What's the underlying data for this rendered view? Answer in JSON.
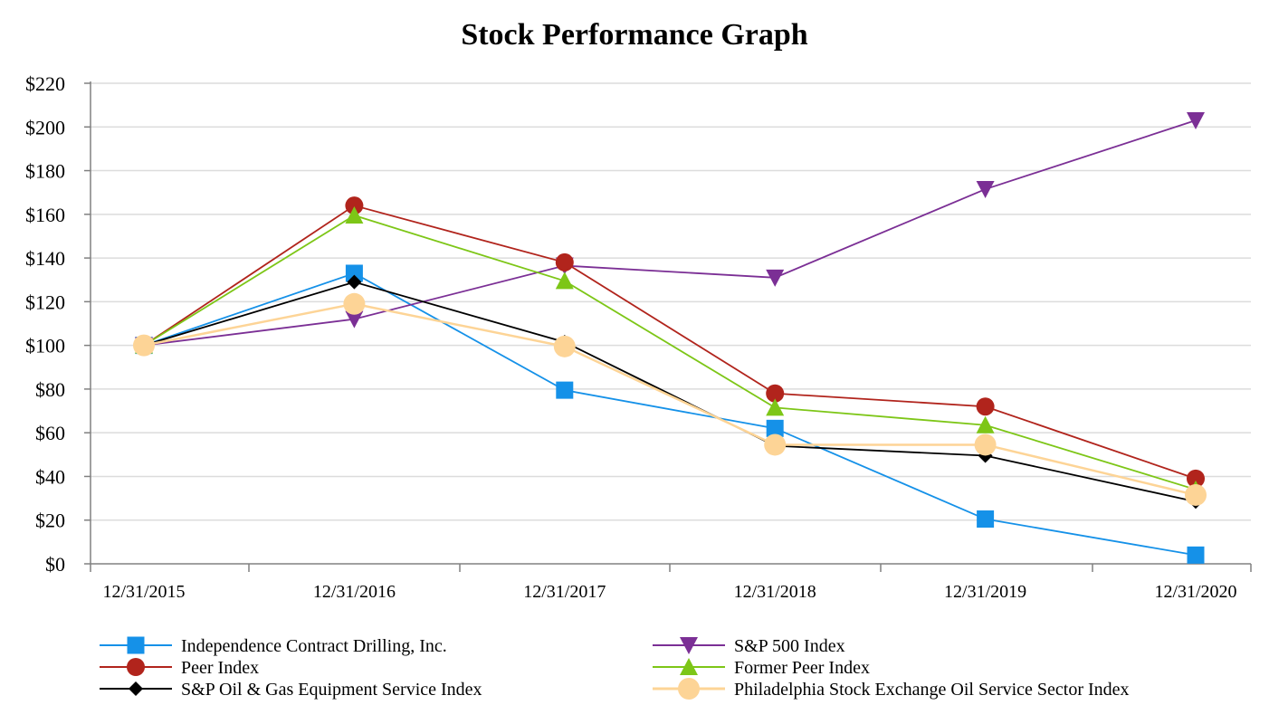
{
  "chart_data": {
    "type": "line",
    "title": "Stock Performance Graph",
    "xlabel": "",
    "ylabel": "",
    "x": [
      "12/31/2015",
      "12/31/2016",
      "12/31/2017",
      "12/31/2018",
      "12/31/2019",
      "12/31/2020"
    ],
    "ylim": [
      0,
      220
    ],
    "yticks": [
      "$0",
      "$20",
      "$40",
      "$60",
      "$80",
      "$100",
      "$120",
      "$140",
      "$160",
      "$180",
      "$200",
      "$220"
    ],
    "ytick_values": [
      0,
      20,
      40,
      60,
      80,
      100,
      120,
      140,
      160,
      180,
      200,
      220
    ],
    "grid": true,
    "legend_position": "bottom",
    "series": [
      {
        "name": "Independence Contract Drilling, Inc.",
        "values": [
          100,
          133,
          79.5,
          62,
          20.5,
          4
        ],
        "color": "#1591e8",
        "marker": "square"
      },
      {
        "name": "S&P 500 Index",
        "values": [
          100,
          112,
          136.5,
          131,
          171.5,
          203
        ],
        "color": "#7b2f95",
        "marker": "triangle-down"
      },
      {
        "name": "Peer Index",
        "values": [
          100,
          164,
          138,
          78,
          72,
          39
        ],
        "color": "#b1241c",
        "marker": "circle"
      },
      {
        "name": "Former Peer Index",
        "values": [
          100,
          159.5,
          129.5,
          71.5,
          63.5,
          34
        ],
        "color": "#7dc617",
        "marker": "triangle-up"
      },
      {
        "name": "S&P Oil & Gas Equipment Service Index",
        "values": [
          100,
          129,
          101.5,
          54,
          49.5,
          28.5
        ],
        "color": "#000000",
        "marker": "diamond"
      },
      {
        "name": "Philadelphia Stock Exchange Oil Service Sector Index",
        "values": [
          100,
          119,
          99.5,
          54.5,
          54.5,
          31.5
        ],
        "color": "#fdd496",
        "marker": "circle-large"
      }
    ]
  }
}
